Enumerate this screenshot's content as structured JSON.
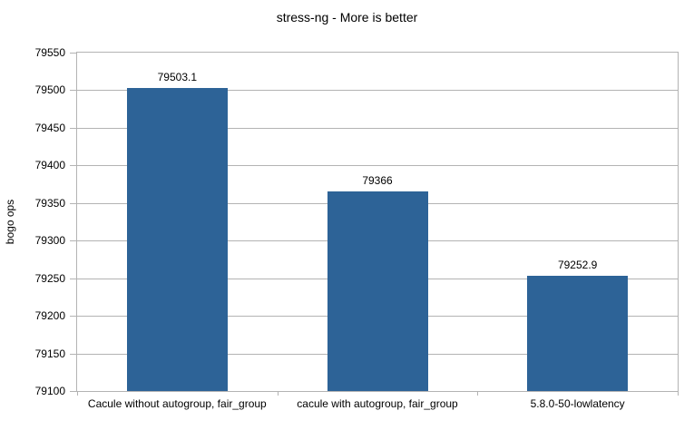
{
  "title": "stress-ng - More is better",
  "colors": {
    "bar": "#2d6397",
    "grid": "#b3b3b3",
    "axis": "#b3b3b3",
    "text": "#000000",
    "background": "#ffffff"
  },
  "chart_data": {
    "type": "bar",
    "title": "stress-ng - More is better",
    "categories": [
      "Cacule without autogroup, fair_group",
      "cacule with autogroup, fair_group",
      "5.8.0-50-lowlatency"
    ],
    "values": [
      79503.1,
      79366,
      79252.9
    ],
    "value_labels": [
      "79503.1",
      "79366",
      "79252.9"
    ],
    "xlabel": "",
    "ylabel": "bogo ops",
    "ylim": [
      79100,
      79550
    ],
    "ytick_step": 50,
    "yticks": [
      79100,
      79150,
      79200,
      79250,
      79300,
      79350,
      79400,
      79450,
      79500,
      79550
    ],
    "grid": true,
    "legend": false,
    "bar_color": "#2d6397"
  }
}
